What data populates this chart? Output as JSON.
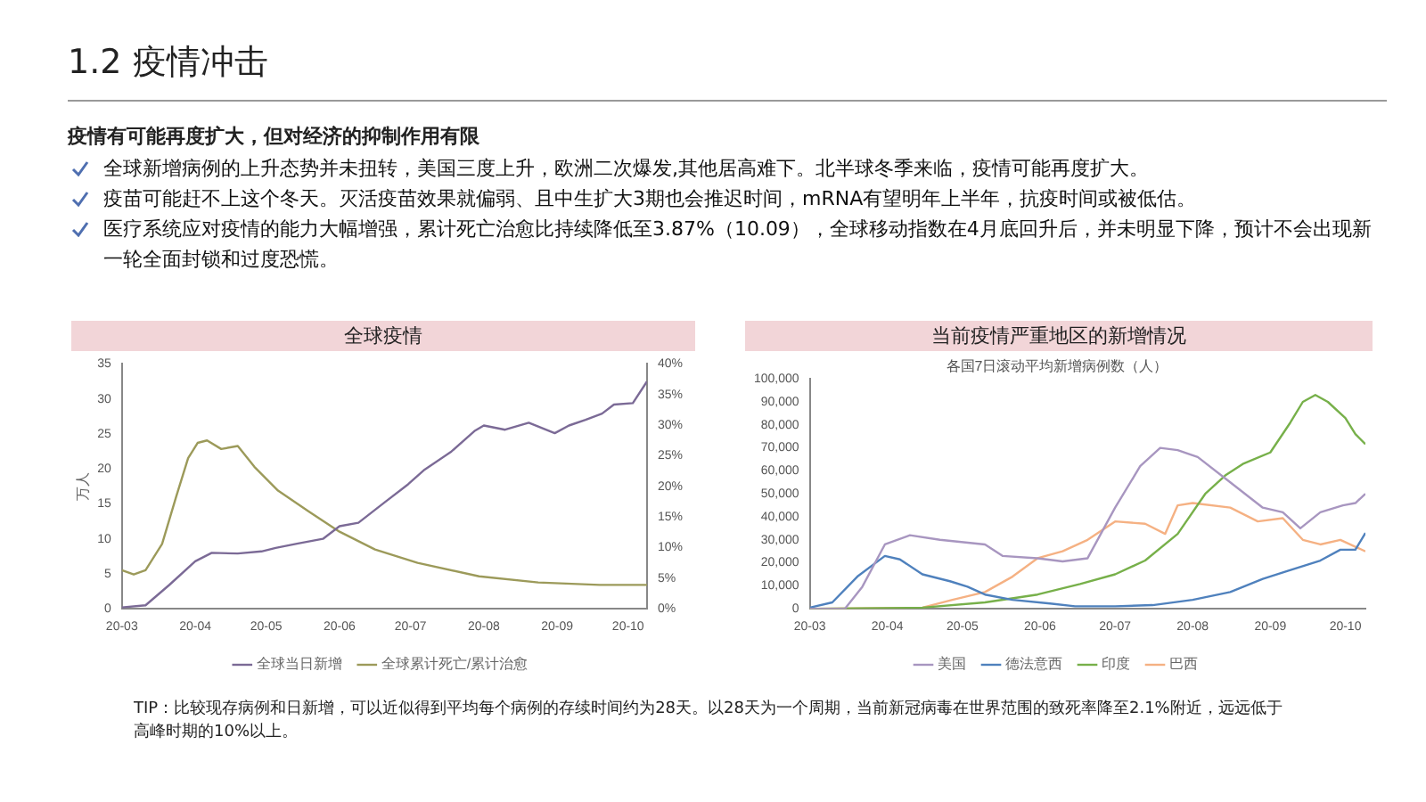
{
  "chart_data": [
    {
      "type": "other",
      "title": "1.2 疫情冲击",
      "subtitle": "疫情有可能再度扩大，但对经济的抑制作用有限",
      "annotations": [
        "全球新增病例的上升态势并未扭转，美国三度上升，欧洲二次爆发,其他居高难下。北半球冬季来临，疫情可能再度扩大。",
        "疫苗可能赶不上这个冬天。灭活疫苗效果就偏弱、且中生扩大3期也会推迟时间，mRNA有望明年上半年，抗疫时间或被低估。",
        "医疗系统应对疫情的能力大幅增强，累计死亡治愈比持续降低至3.87%（10.09），全球移动指数在4月底回升后，并未明显下降，预计不会出现新一轮全面封锁和过度恐慌。"
      ]
    },
    {
      "type": "line",
      "title": "全球疫情",
      "ylabel": "万人",
      "legend": "bottom",
      "marker": "none",
      "line_style": "solid",
      "xlim": [
        "--03-01",
        "--10-09"
      ],
      "xticks": [
        {
          "value": "--03-01",
          "label": "20-03"
        },
        {
          "value": "--04-01",
          "label": "20-04"
        },
        {
          "value": "--05-01",
          "label": "20-05"
        },
        {
          "value": "--06-01",
          "label": "20-06"
        },
        {
          "value": "--07-01",
          "label": "20-07"
        },
        {
          "value": "--08-01",
          "label": "20-08"
        },
        {
          "value": "--09-01",
          "label": "20-09"
        },
        {
          "value": "--10-01",
          "label": "20-10"
        }
      ],
      "ylim": [
        0,
        35
      ],
      "yticks": [
        0,
        5,
        10,
        15,
        20,
        25,
        30,
        35
      ],
      "y2lim": [
        0,
        40
      ],
      "y2ticks": [
        {
          "value": 0,
          "label": "0%"
        },
        {
          "value": 5,
          "label": "5%"
        },
        {
          "value": 10,
          "label": "10%"
        },
        {
          "value": 15,
          "label": "15%"
        },
        {
          "value": 20,
          "label": "20%"
        },
        {
          "value": 25,
          "label": "25%"
        },
        {
          "value": 30,
          "label": "30%"
        },
        {
          "value": 35,
          "label": "35%"
        },
        {
          "value": 40,
          "label": "40%"
        }
      ],
      "series": [
        {
          "name": "全球当日新增",
          "color": "#7b6a96",
          "x": [
            "--03-01",
            "--03-11",
            "--03-21",
            "--04-01",
            "--04-08",
            "--04-19",
            "--04-29",
            "--05-05",
            "--05-14",
            "--05-25",
            "--06-01",
            "--06-09",
            "--06-20",
            "--06-30",
            "--07-07",
            "--07-18",
            "--07-28",
            "--08-01",
            "--08-10",
            "--08-20",
            "--08-31",
            "--09-06",
            "--09-13",
            "--09-20",
            "--09-25",
            "--10-03",
            "--10-09"
          ],
          "values": [
            0.2,
            0.5,
            3.4,
            6.8,
            8.0,
            7.9,
            8.2,
            8.7,
            9.3,
            10.0,
            11.8,
            12.3,
            15.2,
            17.8,
            19.9,
            22.4,
            25.4,
            26.2,
            25.6,
            26.6,
            25.1,
            26.2,
            27.0,
            27.9,
            29.2,
            29.4,
            32.5
          ]
        },
        {
          "name": "全球累计死亡/累计治愈",
          "color": "#9c9a5a",
          "axis": "y2",
          "x": [
            "--03-01",
            "--03-06",
            "--03-11",
            "--03-18",
            "--03-24",
            "--03-29",
            "--04-02",
            "--04-06",
            "--04-12",
            "--04-19",
            "--04-26",
            "--05-06",
            "--05-19",
            "--06-01",
            "--06-16",
            "--07-04",
            "--07-30",
            "--08-24",
            "--09-19",
            "--10-09"
          ],
          "values": [
            6.3,
            5.6,
            6.3,
            10.6,
            18.4,
            24.6,
            27.1,
            27.5,
            26.1,
            26.6,
            23.2,
            19.3,
            15.9,
            12.6,
            9.7,
            7.5,
            5.3,
            4.3,
            3.9,
            3.9
          ]
        }
      ]
    },
    {
      "type": "line",
      "title": "当前疫情严重地区的新增情况",
      "subtitle": "各国7日滚动平均新增病例数（人）",
      "legend": "bottom",
      "marker": "none",
      "line_style": "solid",
      "xlim": [
        "--03-01",
        "--10-09"
      ],
      "xticks": [
        {
          "value": "--03-01",
          "label": "20-03"
        },
        {
          "value": "--04-01",
          "label": "20-04"
        },
        {
          "value": "--05-01",
          "label": "20-05"
        },
        {
          "value": "--06-01",
          "label": "20-06"
        },
        {
          "value": "--07-01",
          "label": "20-07"
        },
        {
          "value": "--08-01",
          "label": "20-08"
        },
        {
          "value": "--09-01",
          "label": "20-09"
        },
        {
          "value": "--10-01",
          "label": "20-10"
        }
      ],
      "ylim": [
        0,
        100000
      ],
      "yticks": [
        {
          "value": 0,
          "label": "0"
        },
        {
          "value": 10000,
          "label": "10,000"
        },
        {
          "value": 20000,
          "label": "20,000"
        },
        {
          "value": 30000,
          "label": "30,000"
        },
        {
          "value": 40000,
          "label": "40,000"
        },
        {
          "value": 50000,
          "label": "50,000"
        },
        {
          "value": 60000,
          "label": "60,000"
        },
        {
          "value": 70000,
          "label": "70,000"
        },
        {
          "value": 80000,
          "label": "80,000"
        },
        {
          "value": 90000,
          "label": "90,000"
        },
        {
          "value": 100000,
          "label": "100,000"
        }
      ],
      "series": [
        {
          "name": "美国",
          "color": "#a896c0",
          "x": [
            "--03-01",
            "--03-15",
            "--03-22",
            "--03-31",
            "--04-10",
            "--04-22",
            "--05-10",
            "--05-17",
            "--05-31",
            "--06-10",
            "--06-20",
            "--07-01",
            "--07-11",
            "--07-19",
            "--07-26",
            "--08-03",
            "--08-16",
            "--08-29",
            "--09-06",
            "--09-13",
            "--09-21",
            "--09-30",
            "--10-05",
            "--10-09"
          ],
          "values": [
            0,
            0,
            9600,
            28000,
            32000,
            30000,
            28000,
            23000,
            22000,
            20600,
            22000,
            44000,
            62000,
            70000,
            69000,
            66000,
            55000,
            44000,
            42000,
            35000,
            42000,
            45000,
            46000,
            50000
          ]
        },
        {
          "name": "德法意西",
          "color": "#4f81bd",
          "x": [
            "--03-01",
            "--03-10",
            "--03-20",
            "--03-31",
            "--04-06",
            "--04-15",
            "--04-26",
            "--05-03",
            "--05-10",
            "--05-21",
            "--06-05",
            "--06-15",
            "--07-01",
            "--07-16",
            "--08-01",
            "--08-16",
            "--08-29",
            "--09-08",
            "--09-21",
            "--09-29",
            "--10-05",
            "--10-09"
          ],
          "values": [
            500,
            2800,
            14000,
            23000,
            21500,
            15000,
            12000,
            9600,
            6200,
            3900,
            2300,
            1100,
            1100,
            1600,
            3900,
            7300,
            13000,
            16500,
            21000,
            25700,
            25700,
            33000
          ]
        },
        {
          "name": "印度",
          "color": "#77b04a",
          "x": [
            "--03-01",
            "--04-15",
            "--05-10",
            "--05-31",
            "--06-17",
            "--07-01",
            "--07-13",
            "--07-26",
            "--08-06",
            "--08-14",
            "--08-21",
            "--09-01",
            "--09-09",
            "--09-14",
            "--09-19",
            "--09-24",
            "--10-01",
            "--10-05",
            "--10-09"
          ],
          "values": [
            0,
            500,
            2800,
            6200,
            10800,
            15000,
            21000,
            32600,
            50000,
            58000,
            63000,
            68000,
            81000,
            90000,
            93000,
            90000,
            83000,
            76000,
            71600
          ]
        },
        {
          "name": "巴西",
          "color": "#f5b183",
          "x": [
            "--03-01",
            "--04-15",
            "--04-27",
            "--05-10",
            "--05-21",
            "--05-31",
            "--06-10",
            "--06-20",
            "--07-01",
            "--07-13",
            "--07-21",
            "--07-26",
            "--08-01",
            "--08-16",
            "--08-27",
            "--09-06",
            "--09-14",
            "--09-21",
            "--09-29",
            "--10-05",
            "--10-09"
          ],
          "values": [
            0,
            500,
            3900,
            7300,
            14000,
            22000,
            25000,
            30000,
            38000,
            37000,
            32600,
            45000,
            46000,
            44000,
            38000,
            39400,
            30000,
            28000,
            30000,
            27000,
            25000
          ]
        }
      ]
    },
    {
      "type": "other",
      "annotations": [
        "TIP：比较现存病例和日新增，可以近似得到平均每个病例的存续时间约为28天。以28天为一个周期，当前新冠病毒在世界范围的致死率降至2.1%附近，远远低于高峰时期的10%以上。"
      ]
    }
  ]
}
